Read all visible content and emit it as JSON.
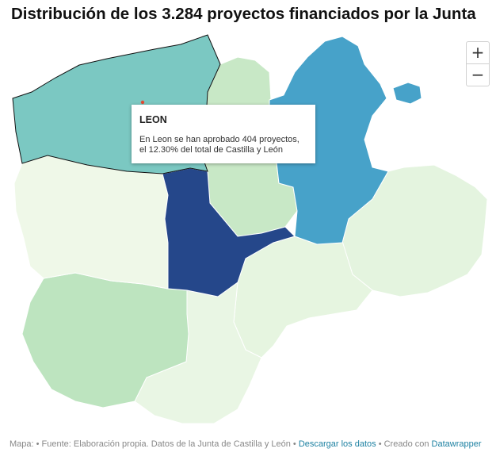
{
  "title": "Distribución de los 3.284 proyectos financiados por la Junta",
  "zoom": {
    "in_label": "+",
    "out_label": "−"
  },
  "tooltip": {
    "title": "LEON",
    "line1": "En Leon se han aprobado 404 proyectos,",
    "line2": "el 12.30% del total de Castilla y León"
  },
  "colors": {
    "leon": "#7bc8c2",
    "palencia": "#c8e8c6",
    "burgos": "#47a2c9",
    "zamora": "#eff8e8",
    "valladolid": "#25478a",
    "soria": "#e4f4df",
    "salamanca": "#bde4bf",
    "avila": "#e9f6e4",
    "segovia": "#e6f5e0",
    "marker": "#e34a33"
  },
  "footer": {
    "prefix": "Mapa: • Fuente: Elaboración propia. Datos de la Junta de Castilla y León •",
    "download_link": "Descargar los datos",
    "middle": "• Creado con",
    "credit_link": "Datawrapper"
  }
}
